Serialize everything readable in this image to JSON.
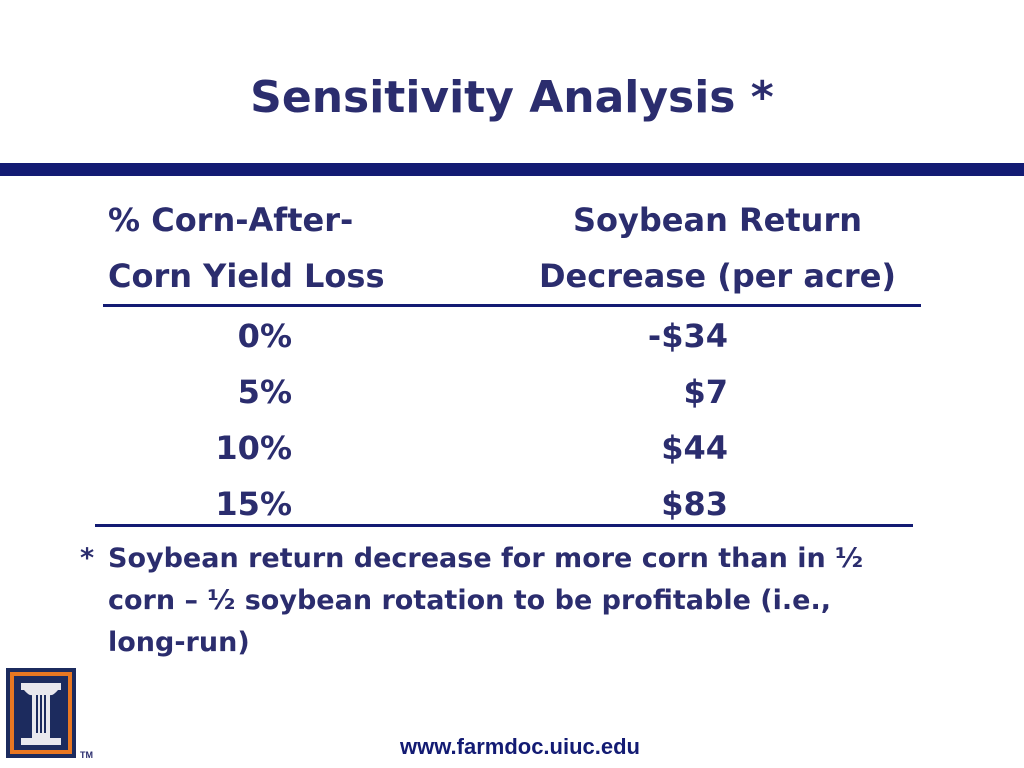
{
  "slide": {
    "title": "Sensitivity Analysis *",
    "table": {
      "header_left": [
        "% Corn-After-",
        "Corn Yield Loss"
      ],
      "header_right": [
        "Soybean Return",
        "Decrease (per acre)"
      ],
      "rows": [
        {
          "pct": "0%",
          "value": "-$34"
        },
        {
          "pct": "5%",
          "value": "$7"
        },
        {
          "pct": "10%",
          "value": "$44"
        },
        {
          "pct": "15%",
          "value": "$83"
        }
      ]
    },
    "footnote": {
      "star": "*",
      "line1": "Soybean return decrease for more corn than in ½",
      "line2": "corn – ½ soybean rotation to be profitable (i.e.,",
      "line3": "long-run)"
    },
    "logo": {
      "icon": "illinois-block-i-icon",
      "mark": "TM"
    },
    "url": "www.farmdoc.uiuc.edu",
    "colors": {
      "text": "#2b2d6e",
      "rule": "#131b73",
      "logo_orange": "#e87722",
      "logo_navy": "#1c2b5e"
    }
  }
}
